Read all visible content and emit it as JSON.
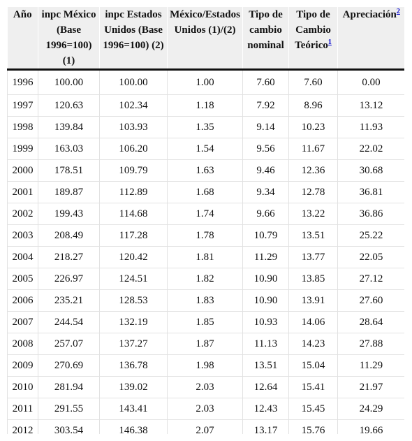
{
  "table": {
    "headers": [
      {
        "text": "Año",
        "sup": ""
      },
      {
        "text": "inpc México (Base 1996=100) (1)",
        "sup": ""
      },
      {
        "text": "inpc Estados Unidos (Base 1996=100) (2)",
        "sup": ""
      },
      {
        "text": "México/Estados Unidos (1)/(2)",
        "sup": ""
      },
      {
        "text": "Tipo de cambio nominal",
        "sup": ""
      },
      {
        "text": "Tipo de Cambio Teórico",
        "sup": "1"
      },
      {
        "text": "Apreciación",
        "sup": "2"
      }
    ],
    "rows": [
      [
        "1996",
        "100.00",
        "100.00",
        "1.00",
        "7.60",
        "7.60",
        "0.00"
      ],
      [
        "1997",
        "120.63",
        "102.34",
        "1.18",
        "7.92",
        "8.96",
        "13.12"
      ],
      [
        "1998",
        "139.84",
        "103.93",
        "1.35",
        "9.14",
        "10.23",
        "11.93"
      ],
      [
        "1999",
        "163.03",
        "106.20",
        "1.54",
        "9.56",
        "11.67",
        "22.02"
      ],
      [
        "2000",
        "178.51",
        "109.79",
        "1.63",
        "9.46",
        "12.36",
        "30.68"
      ],
      [
        "2001",
        "189.87",
        "112.89",
        "1.68",
        "9.34",
        "12.78",
        "36.81"
      ],
      [
        "2002",
        "199.43",
        "114.68",
        "1.74",
        "9.66",
        "13.22",
        "36.86"
      ],
      [
        "2003",
        "208.49",
        "117.28",
        "1.78",
        "10.79",
        "13.51",
        "25.22"
      ],
      [
        "2004",
        "218.27",
        "120.42",
        "1.81",
        "11.29",
        "13.77",
        "22.05"
      ],
      [
        "2005",
        "226.97",
        "124.51",
        "1.82",
        "10.90",
        "13.85",
        "27.12"
      ],
      [
        "2006",
        "235.21",
        "128.53",
        "1.83",
        "10.90",
        "13.91",
        "27.60"
      ],
      [
        "2007",
        "244.54",
        "132.19",
        "1.85",
        "10.93",
        "14.06",
        "28.64"
      ],
      [
        "2008",
        "257.07",
        "137.27",
        "1.87",
        "11.13",
        "14.23",
        "27.88"
      ],
      [
        "2009",
        "270.69",
        "136.78",
        "1.98",
        "13.51",
        "15.04",
        "11.29"
      ],
      [
        "2010",
        "281.94",
        "139.02",
        "2.03",
        "12.64",
        "15.41",
        "21.97"
      ],
      [
        "2011",
        "291.55",
        "143.41",
        "2.03",
        "12.43",
        "15.45",
        "24.29"
      ],
      [
        "2012",
        "303.54",
        "146.38",
        "2.07",
        "13.17",
        "15.76",
        "19.66"
      ]
    ]
  }
}
